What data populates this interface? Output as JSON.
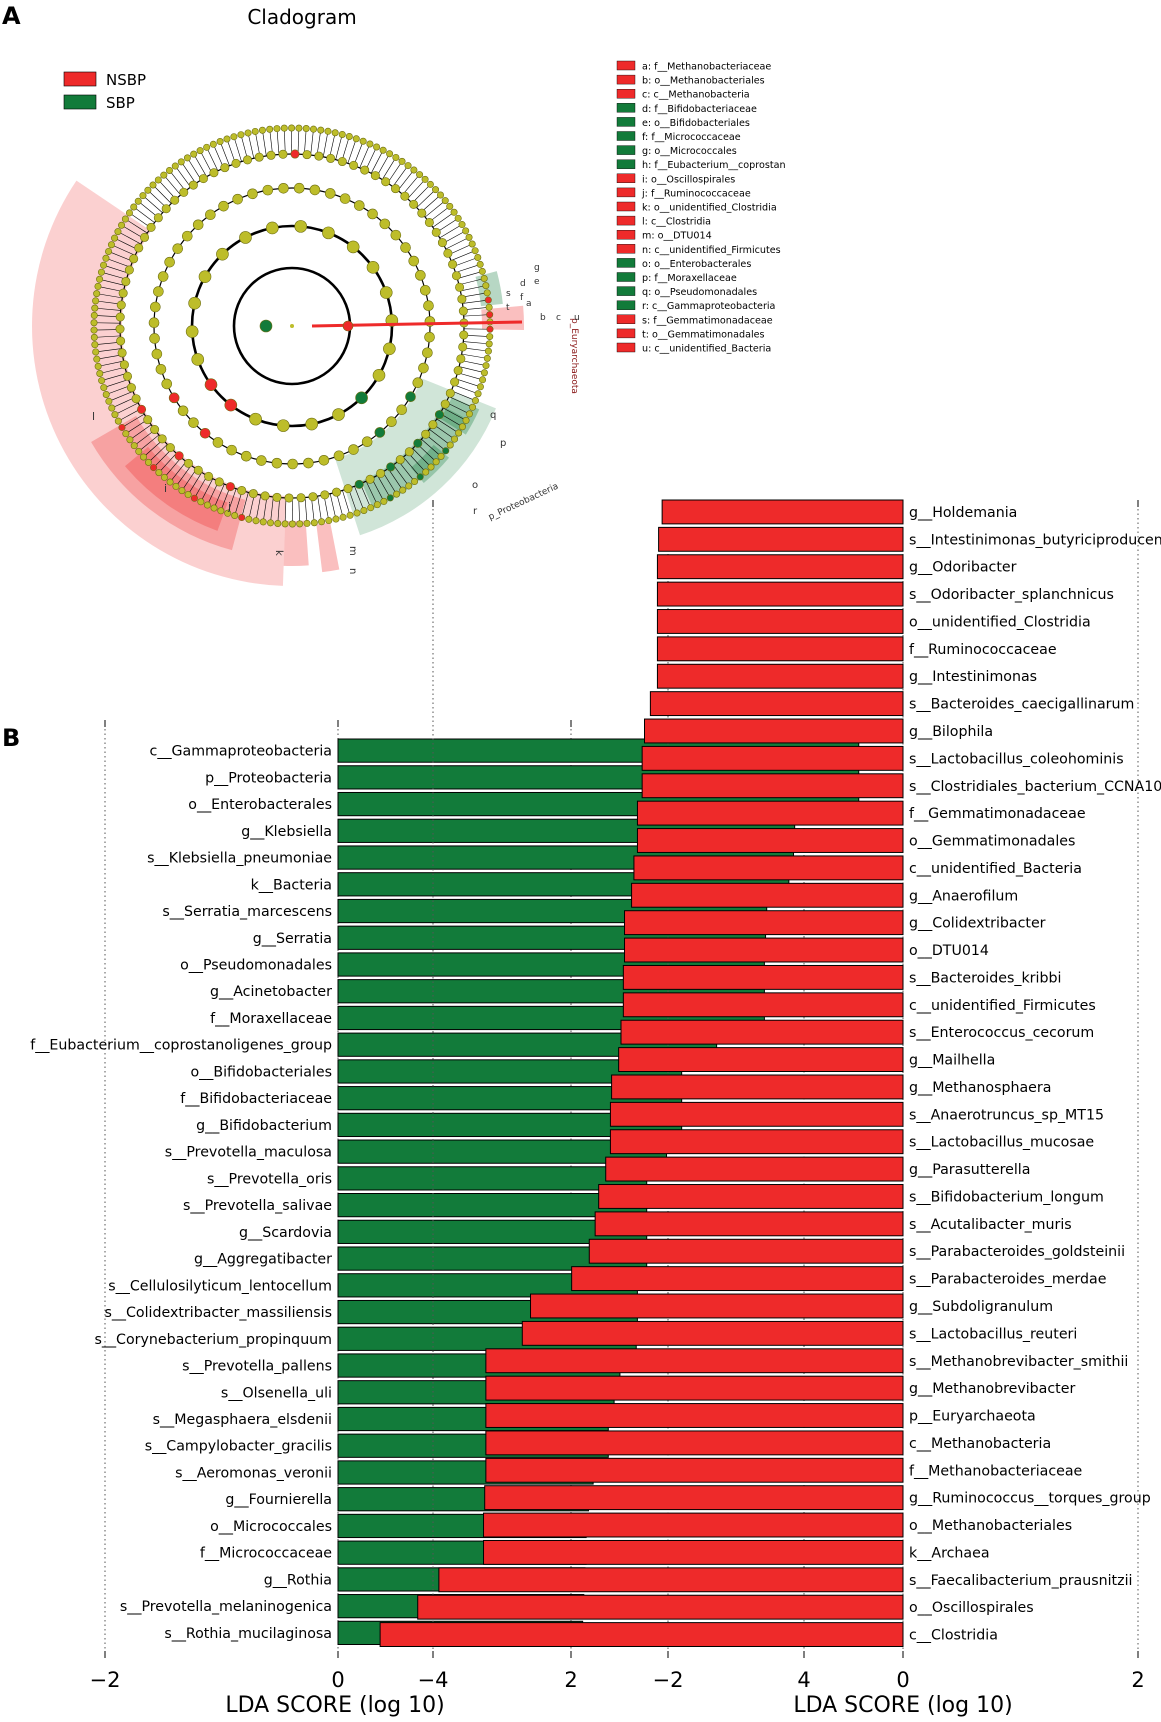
{
  "panel_labels": {
    "a": "A",
    "b": "B"
  },
  "colors": {
    "nsbp": "#ee2a2a",
    "sbp": "#127b3a",
    "node": "#bdbd2a",
    "node_stroke": "#6d6d10"
  },
  "cladogram": {
    "title": "Cladogram",
    "legend": [
      {
        "label": "NSBP",
        "color": "#ee2a2a"
      },
      {
        "label": "SBP",
        "color": "#127b3a"
      }
    ],
    "sector_labels": {
      "euryarchaeota": "p_Euryarchaeota",
      "proteobacteria": "p_Proteobacteria",
      "l": "l",
      "i": "i",
      "j": "j",
      "h": "h",
      "k": "k",
      "m": "m",
      "n": "n",
      "o": "o",
      "r": "r",
      "p": "p",
      "q": "q",
      "a": "a",
      "b": "b",
      "c": "c",
      "u": "u",
      "d": "d",
      "e": "e",
      "f": "f",
      "g": "g",
      "s": "s",
      "t": "t"
    },
    "key": [
      {
        "text": "a: f__Methanobacteriaceae",
        "group": "NSBP"
      },
      {
        "text": "b: o__Methanobacteriales",
        "group": "NSBP"
      },
      {
        "text": "c: c__Methanobacteria",
        "group": "NSBP"
      },
      {
        "text": "d: f__Bifidobacteriaceae",
        "group": "SBP"
      },
      {
        "text": "e: o__Bifidobacteriales",
        "group": "SBP"
      },
      {
        "text": "f: f__Micrococcaceae",
        "group": "SBP"
      },
      {
        "text": "g: o__Micrococcales",
        "group": "SBP"
      },
      {
        "text": "h: f__Eubacterium__coprostan",
        "group": "SBP"
      },
      {
        "text": "i: o__Oscillospirales",
        "group": "NSBP"
      },
      {
        "text": "j: f__Ruminococcaceae",
        "group": "NSBP"
      },
      {
        "text": "k: o__unidentified_Clostridia",
        "group": "NSBP"
      },
      {
        "text": "l: c__Clostridia",
        "group": "NSBP"
      },
      {
        "text": "m: o__DTU014",
        "group": "NSBP"
      },
      {
        "text": "n: c__unidentified_Firmicutes",
        "group": "NSBP"
      },
      {
        "text": "o: o__Enterobacterales",
        "group": "SBP"
      },
      {
        "text": "p: f__Moraxellaceae",
        "group": "SBP"
      },
      {
        "text": "q: o__Pseudomonadales",
        "group": "SBP"
      },
      {
        "text": "r: c__Gammaproteobacteria",
        "group": "SBP"
      },
      {
        "text": "s: f__Gemmatimonadaceae",
        "group": "NSBP"
      },
      {
        "text": "t: o__Gemmatimonadales",
        "group": "NSBP"
      },
      {
        "text": "u: c__unidentified_Bacteria",
        "group": "NSBP"
      }
    ]
  },
  "chart_data": [
    {
      "type": "bar",
      "orientation": "horizontal",
      "group": "SBP",
      "xlabel": "LDA SCORE (log 10)",
      "xlim": [
        -4,
        4
      ],
      "xticks": [
        -4,
        -2,
        0,
        2,
        4
      ],
      "categories": [
        "c__Gammaproteobacteria",
        "p__Proteobacteria",
        "o__Enterobacterales",
        "g__Klebsiella",
        "s__Klebsiella_pneumoniae",
        "k__Bacteria",
        "s__Serratia_marcescens",
        "g__Serratia",
        "o__Pseudomonadales",
        "g__Acinetobacter",
        "f__Moraxellaceae",
        "f__Eubacterium__coprostanoligenes_group",
        "o__Bifidobacteriales",
        "f__Bifidobacteriaceae",
        "g__Bifidobacterium",
        "s__Prevotella_maculosa",
        "s__Prevotella_oris",
        "s__Prevotella_salivae",
        "g__Scardovia",
        "g__Aggregatibacter",
        "s__Cellulosilyticum_lentocellum",
        "s__Colidextribacter_massiliensis",
        "s__Corynebacterium_propinquum",
        "s__Prevotella_pallens",
        "s__Olsenella_uli",
        "s__Megasphaera_elsdenii",
        "s__Campylobacter_gracilis",
        "s__Aeromonas_veronii",
        "g__Fournierella",
        "o__Micrococcales",
        "f__Micrococcaceae",
        "g__Rothia",
        "s__Prevotella_melaninogenica",
        "s__Rothia_mucilaginosa"
      ],
      "values": [
        4.47,
        4.47,
        4.47,
        3.92,
        3.91,
        3.87,
        3.68,
        3.67,
        3.66,
        3.66,
        3.66,
        3.25,
        2.95,
        2.95,
        2.95,
        2.82,
        2.65,
        2.65,
        2.65,
        2.65,
        2.57,
        2.57,
        2.56,
        2.42,
        2.37,
        2.32,
        2.32,
        2.19,
        2.15,
        2.13,
        2.13,
        2.12,
        2.11,
        2.1
      ]
    },
    {
      "type": "bar",
      "orientation": "horizontal",
      "group": "NSBP",
      "xlabel": "LDA SCORE (log 10)",
      "xlim": [
        -4.5,
        4
      ],
      "xticks": [
        -4,
        -2,
        0,
        2,
        4
      ],
      "categories": [
        "g__Holdemania",
        "s__Intestinimonas_butyriciproducens",
        "g__Odoribacter",
        "s__Odoribacter_splanchnicus",
        "o__unidentified_Clostridia",
        "f__Ruminococcaceae",
        "g__Intestinimonas",
        "s__Bacteroides_caecigallinarum",
        "g__Bilophila",
        "s__Lactobacillus_coleohominis",
        "s__Clostridiales_bacterium_CCNA10",
        "f__Gemmatimonadaceae",
        "o__Gemmatimonadales",
        "c__unidentified_Bacteria",
        "g__Anaerofilum",
        "g__Colidextribacter",
        "o__DTU014",
        "s__Bacteroides_kribbi",
        "c__unidentified_Firmicutes",
        "s__Enterococcus_cecorum",
        "g__Mailhella",
        "g__Methanosphaera",
        "s__Anaerotruncus_sp_MT15",
        "s__Lactobacillus_mucosae",
        "g__Parasutterella",
        "s__Bifidobacterium_longum",
        "s__Acutalibacter_muris",
        "s__Parabacteroides_goldsteinii",
        "s__Parabacteroides_merdae",
        "g__Subdoligranulum",
        "s__Lactobacillus_reuteri",
        "s__Methanobrevibacter_smithii",
        "g__Methanobrevibacter",
        "p__Euryarchaeota",
        "c__Methanobacteria",
        "f__Methanobacteriaceae",
        "g__Ruminococcus__torques_group",
        "o__Methanobacteriales",
        "k__Archaea",
        "s__Faecalibacterium_prausnitzii",
        "o__Oscillospirales",
        "c__Clostridia"
      ],
      "values": [
        -2.05,
        -2.08,
        -2.09,
        -2.09,
        -2.09,
        -2.09,
        -2.09,
        -2.15,
        -2.2,
        -2.22,
        -2.22,
        -2.26,
        -2.26,
        -2.29,
        -2.31,
        -2.37,
        -2.37,
        -2.38,
        -2.38,
        -2.4,
        -2.42,
        -2.48,
        -2.49,
        -2.49,
        -2.53,
        -2.59,
        -2.62,
        -2.67,
        -2.82,
        -3.17,
        -3.24,
        -3.55,
        -3.55,
        -3.55,
        -3.55,
        -3.55,
        -3.56,
        -3.57,
        -3.57,
        -3.95,
        -4.13,
        -4.45
      ]
    }
  ]
}
